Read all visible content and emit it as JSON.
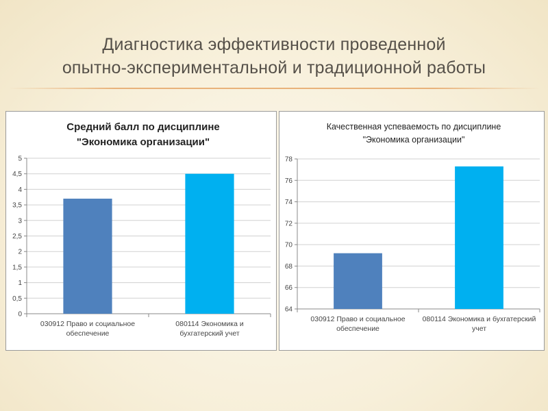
{
  "slide": {
    "title_line1": "Диагностика эффективности проведенной",
    "title_line2": "опытно-экспериментальной и  традиционной работы"
  },
  "chart_data": [
    {
      "type": "bar",
      "title": [
        "Средний балл по дисциплине",
        "\"Экономика организации\""
      ],
      "categories": [
        [
          "030912 Право и социальное",
          "обеспечение"
        ],
        [
          "080114 Экономика и",
          "бухгатерский учет"
        ]
      ],
      "values": [
        3.7,
        4.5
      ],
      "colors": [
        "#4f81bd",
        "#00b0f0"
      ],
      "ylim": [
        0,
        5
      ],
      "yticks": [
        0,
        0.5,
        1,
        1.5,
        2,
        2.5,
        3,
        3.5,
        4,
        4.5,
        5
      ],
      "ytick_labels": [
        "0",
        "0,5",
        "1",
        "1,5",
        "2",
        "2,5",
        "3",
        "3,5",
        "4",
        "4,5",
        "5"
      ],
      "grid": true,
      "legend": "none"
    },
    {
      "type": "bar",
      "title": [
        "Качественная успеваемость по дисциплине",
        "\"Экономика организации\""
      ],
      "categories": [
        [
          "030912 Право и социальное",
          "обеспечение"
        ],
        [
          "080114 Экономика и бухгатерский",
          "учет"
        ]
      ],
      "values": [
        69.2,
        77.3
      ],
      "colors": [
        "#4f81bd",
        "#00b0f0"
      ],
      "ylim": [
        64,
        78
      ],
      "yticks": [
        64,
        66,
        68,
        70,
        72,
        74,
        76,
        78
      ],
      "ytick_labels": [
        "64",
        "66",
        "68",
        "70",
        "72",
        "74",
        "76",
        "78"
      ],
      "grid": true,
      "legend": "none"
    }
  ]
}
